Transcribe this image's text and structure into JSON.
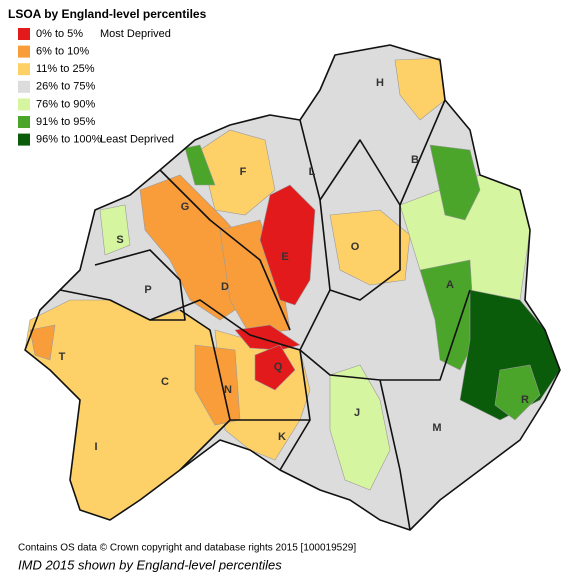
{
  "map": {
    "title": "LSOA by England-level percentiles",
    "legend": [
      {
        "label": "0% to 5%",
        "note": "Most Deprived",
        "color": "#e31a1c"
      },
      {
        "label": "6% to 10%",
        "color": "#f99d3a"
      },
      {
        "label": "11% to 25%",
        "color": "#fdd068"
      },
      {
        "label": "26% to 75%",
        "color": "#dcdcdc"
      },
      {
        "label": "76% to 90%",
        "color": "#d6f5a0"
      },
      {
        "label": "91% to 95%",
        "color": "#4aa52a"
      },
      {
        "label": "96% to 100%",
        "note": "Least Deprived",
        "color": "#0a5c0a"
      }
    ],
    "regions": [
      "H",
      "B",
      "L",
      "F",
      "G",
      "S",
      "E",
      "O",
      "A",
      "P",
      "D",
      "T",
      "C",
      "Q",
      "N",
      "R",
      "J",
      "M",
      "K",
      "I"
    ],
    "credit": "Contains OS data © Crown copyright and database rights 2015 [100019529]",
    "caption": "IMD 2015 shown by England-level percentiles"
  }
}
